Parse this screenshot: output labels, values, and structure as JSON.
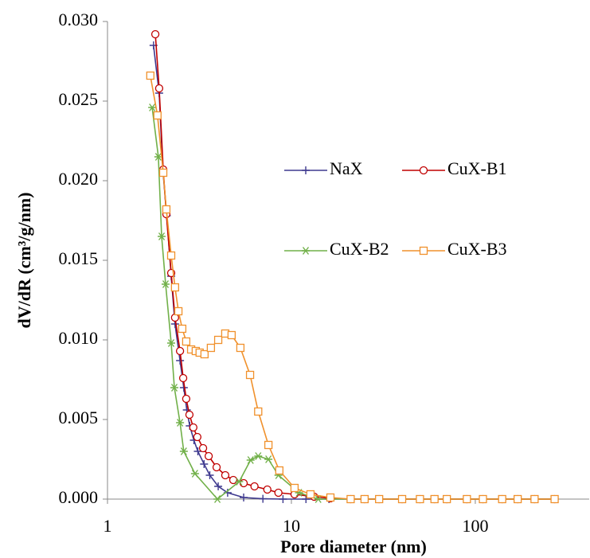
{
  "chart_data": {
    "type": "line",
    "xlabel": "Pore diameter (nm)",
    "ylabel": "dV/dR (cm³/g/nm)",
    "xscale": "log",
    "xlim": [
      1,
      400
    ],
    "xticks": [
      1,
      10,
      100
    ],
    "ylim": [
      0,
      0.03
    ],
    "yticks": [
      {
        "value": 0,
        "label": "0.000"
      },
      {
        "value": 0.005,
        "label": "0.005"
      },
      {
        "value": 0.01,
        "label": "0.010"
      },
      {
        "value": 0.015,
        "label": "0.015"
      },
      {
        "value": 0.02,
        "label": "0.020"
      },
      {
        "value": 0.025,
        "label": "0.025"
      },
      {
        "value": 0.03,
        "label": "0.030"
      }
    ],
    "legend": "right",
    "series": [
      {
        "name": "NaX",
        "color": "#3f3a8f",
        "marker": "plus",
        "x": [
          1.78,
          1.91,
          2.0,
          2.1,
          2.22,
          2.33,
          2.48,
          2.6,
          2.7,
          2.8,
          2.95,
          3.1,
          3.35,
          3.6,
          4.0,
          4.5,
          5.5,
          7,
          9,
          12,
          16,
          21,
          25,
          30,
          40,
          50,
          60,
          70,
          90,
          110,
          140,
          170,
          210,
          270
        ],
        "values": [
          0.0285,
          0.0255,
          0.0207,
          0.0178,
          0.014,
          0.011,
          0.0087,
          0.007,
          0.0056,
          0.0046,
          0.0037,
          0.003,
          0.0022,
          0.0015,
          0.0008,
          0.0004,
          0.0001,
          2e-05,
          0,
          0,
          0,
          0,
          0,
          0,
          0,
          0,
          0,
          0,
          0,
          0,
          0,
          0,
          0,
          0
        ]
      },
      {
        "name": "CuX-B1",
        "color": "#c00000",
        "marker": "circle",
        "x": [
          1.82,
          1.91,
          2.01,
          2.09,
          2.22,
          2.33,
          2.48,
          2.58,
          2.68,
          2.79,
          2.93,
          3.08,
          3.31,
          3.55,
          3.92,
          4.37,
          4.83,
          5.5,
          6.3,
          7.4,
          8.5,
          10.4,
          13.3,
          16.3,
          21,
          25,
          30,
          40,
          50,
          60,
          70,
          90,
          110,
          140,
          170,
          210,
          270
        ],
        "values": [
          0.0292,
          0.0258,
          0.0207,
          0.0179,
          0.0142,
          0.0114,
          0.0093,
          0.0076,
          0.0063,
          0.0053,
          0.0045,
          0.0039,
          0.0032,
          0.0027,
          0.002,
          0.0015,
          0.0012,
          0.001,
          0.0008,
          0.0006,
          0.0004,
          0.0003,
          0.00015,
          5e-05,
          0,
          0,
          0,
          0,
          0,
          0,
          0,
          0,
          0,
          0,
          0,
          0,
          0
        ]
      },
      {
        "name": "CuX-B2",
        "color": "#71b049",
        "marker": "asterisk",
        "x": [
          1.75,
          1.89,
          1.97,
          2.07,
          2.22,
          2.31,
          2.48,
          2.6,
          2.99,
          3.96,
          5.2,
          6.0,
          6.6,
          7.5,
          8.5,
          11.0,
          14,
          21,
          25,
          30,
          40,
          50,
          60,
          70,
          90,
          110,
          140,
          170,
          210,
          270
        ],
        "values": [
          0.0246,
          0.0215,
          0.0165,
          0.0135,
          0.0098,
          0.007,
          0.0048,
          0.003,
          0.0016,
          0,
          0.0011,
          0.00245,
          0.0027,
          0.0025,
          0.0015,
          0.0004,
          0,
          0,
          0,
          0,
          0,
          0,
          0,
          0,
          0,
          0,
          0,
          0,
          0,
          0
        ]
      },
      {
        "name": "CuX-B3",
        "color": "#f0912c",
        "marker": "square",
        "x": [
          1.71,
          1.87,
          2.01,
          2.09,
          2.22,
          2.33,
          2.43,
          2.55,
          2.68,
          2.85,
          3.02,
          3.17,
          3.37,
          3.65,
          4.0,
          4.37,
          4.73,
          5.28,
          5.96,
          6.6,
          7.5,
          8.6,
          10.4,
          12.7,
          16.3,
          21,
          25,
          30,
          40,
          50,
          60,
          70,
          90,
          110,
          140,
          170,
          210,
          270
        ],
        "values": [
          0.0266,
          0.0241,
          0.0205,
          0.0182,
          0.0153,
          0.0133,
          0.0118,
          0.0107,
          0.0099,
          0.0094,
          0.0093,
          0.0092,
          0.0091,
          0.0095,
          0.01,
          0.0104,
          0.0103,
          0.0095,
          0.0078,
          0.0055,
          0.0034,
          0.0018,
          0.0007,
          0.0003,
          0.0001,
          0,
          0,
          0,
          0,
          0,
          0,
          0,
          0,
          0,
          0,
          0,
          0,
          0
        ]
      }
    ]
  }
}
